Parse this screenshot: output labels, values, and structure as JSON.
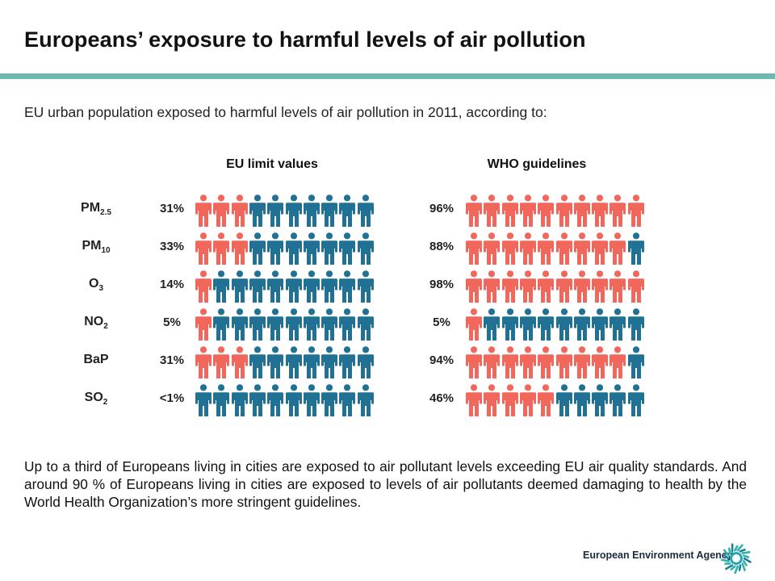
{
  "title": "Europeans’ exposure to harmful levels of air pollution",
  "subtitle": "EU urban population exposed to harmful levels of air pollution in 2011, according to:",
  "colors": {
    "exposed": "#f2675c",
    "not_exposed": "#217195",
    "accent_rule": "#6fb7b1"
  },
  "chart_data": {
    "type": "pictogram",
    "icons_per_row": 10,
    "unit": "% of EU urban population",
    "series": [
      {
        "name": "EU limit values"
      },
      {
        "name": "WHO guidelines"
      }
    ],
    "rows": [
      {
        "pollutant": "PM",
        "sub": "2.5",
        "eu_label": "31%",
        "eu_value": 31,
        "who_label": "96%",
        "who_value": 96
      },
      {
        "pollutant": "PM",
        "sub": "10",
        "eu_label": "33%",
        "eu_value": 33,
        "who_label": "88%",
        "who_value": 88
      },
      {
        "pollutant": "O",
        "sub": "3",
        "eu_label": "14%",
        "eu_value": 14,
        "who_label": "98%",
        "who_value": 98
      },
      {
        "pollutant": "NO",
        "sub": "2",
        "eu_label": "5%",
        "eu_value": 5,
        "who_label": "5%",
        "who_value": 5
      },
      {
        "pollutant": "BaP",
        "sub": "",
        "eu_label": "31%",
        "eu_value": 31,
        "who_label": "94%",
        "who_value": 94
      },
      {
        "pollutant": "SO",
        "sub": "2",
        "eu_label": "<1%",
        "eu_value": 0.5,
        "who_label": "46%",
        "who_value": 46
      }
    ]
  },
  "paragraph": "Up to a third of Europeans living in cities are exposed to air pollutant levels exceeding EU air quality standards. And around 90 % of Europeans living in cities are exposed to levels of air pollutants deemed damaging  to health by the World Health Organization’s more stringent guidelines.",
  "footer": {
    "agency_name": "European Environment Agency"
  }
}
